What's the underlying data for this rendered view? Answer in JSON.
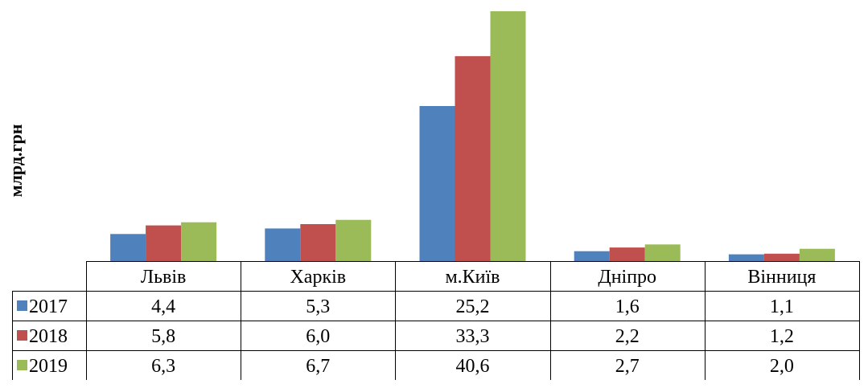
{
  "chart_data": {
    "type": "bar",
    "ylabel": "млрд.грн",
    "categories": [
      "Львів",
      "Харків",
      "м.Київ",
      "Дніпро",
      "Вінниця"
    ],
    "series": [
      {
        "name": "2017",
        "color": "#4F81BD",
        "values": [
          4.4,
          5.3,
          25.2,
          1.6,
          1.1
        ],
        "labels": [
          "4,4",
          "5,3",
          "25,2",
          "1,6",
          "1,1"
        ]
      },
      {
        "name": "2018",
        "color": "#C0504D",
        "values": [
          5.8,
          6.0,
          33.3,
          2.2,
          1.2
        ],
        "labels": [
          "5,8",
          "6,0",
          "33,3",
          "2,2",
          "1,2"
        ]
      },
      {
        "name": "2019",
        "color": "#9BBB59",
        "values": [
          6.3,
          6.7,
          40.6,
          2.7,
          2.0
        ],
        "labels": [
          "6,3",
          "6,7",
          "40,6",
          "2,7",
          "2,0"
        ]
      }
    ],
    "ylim": [
      0,
      40.6
    ],
    "grid": false,
    "legend": "data-table"
  }
}
